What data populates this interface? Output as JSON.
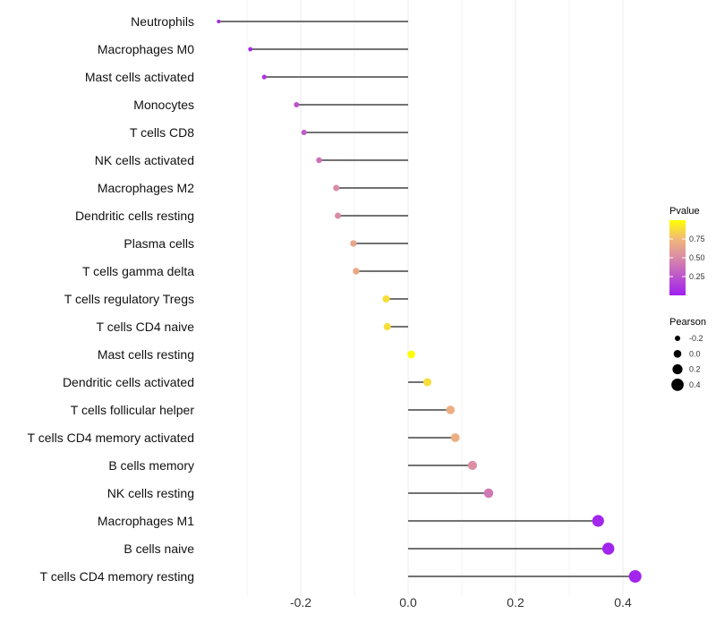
{
  "chart_data": {
    "type": "lollipop",
    "title": "",
    "xlabel": "",
    "ylabel": "",
    "xlim": [
      -0.37,
      0.47
    ],
    "x_ticks": [
      -0.2,
      0.0,
      0.2,
      0.4
    ],
    "x_tick_labels": [
      "-0.2",
      "0.0",
      "0.2",
      "0.4"
    ],
    "grid": true,
    "categories": [
      "Neutrophils",
      "Macrophages M0",
      "Mast cells activated",
      "Monocytes",
      "T cells CD8",
      "NK cells activated",
      "Macrophages M2",
      "Dendritic cells resting",
      "Plasma cells",
      "T cells gamma delta",
      "T cells regulatory  Tregs",
      "T cells CD4 naive",
      "Mast cells resting",
      "Dendritic cells activated",
      "T cells follicular helper",
      "T cells CD4 memory activated",
      "B cells memory",
      "NK cells resting",
      "Macrophages M1",
      "B cells naive",
      "T cells CD4 memory resting"
    ],
    "pearson": [
      -0.352,
      -0.293,
      -0.267,
      -0.207,
      -0.193,
      -0.165,
      -0.133,
      -0.13,
      -0.101,
      -0.096,
      -0.04,
      -0.038,
      0.005,
      0.035,
      0.078,
      0.087,
      0.119,
      0.149,
      0.353,
      0.372,
      0.422
    ],
    "pvalue": [
      0.04,
      0.05,
      0.1,
      0.25,
      0.28,
      0.38,
      0.5,
      0.5,
      0.65,
      0.67,
      0.88,
      0.88,
      0.99,
      0.88,
      0.7,
      0.7,
      0.52,
      0.42,
      0.03,
      0.02,
      0.02
    ],
    "legend": {
      "placement": "right",
      "color": {
        "title": "Pvalue",
        "ticks": [
          0.25,
          0.5,
          0.75
        ],
        "tick_labels": [
          "0.25",
          "0.50",
          "0.75"
        ],
        "low": "#A020F0",
        "high": "#FFFF00"
      },
      "size": {
        "title": "Pearson",
        "values": [
          -0.2,
          0.0,
          0.2,
          0.4
        ],
        "labels": [
          "-0.2",
          "0.0",
          "0.2",
          "0.4"
        ]
      }
    }
  }
}
